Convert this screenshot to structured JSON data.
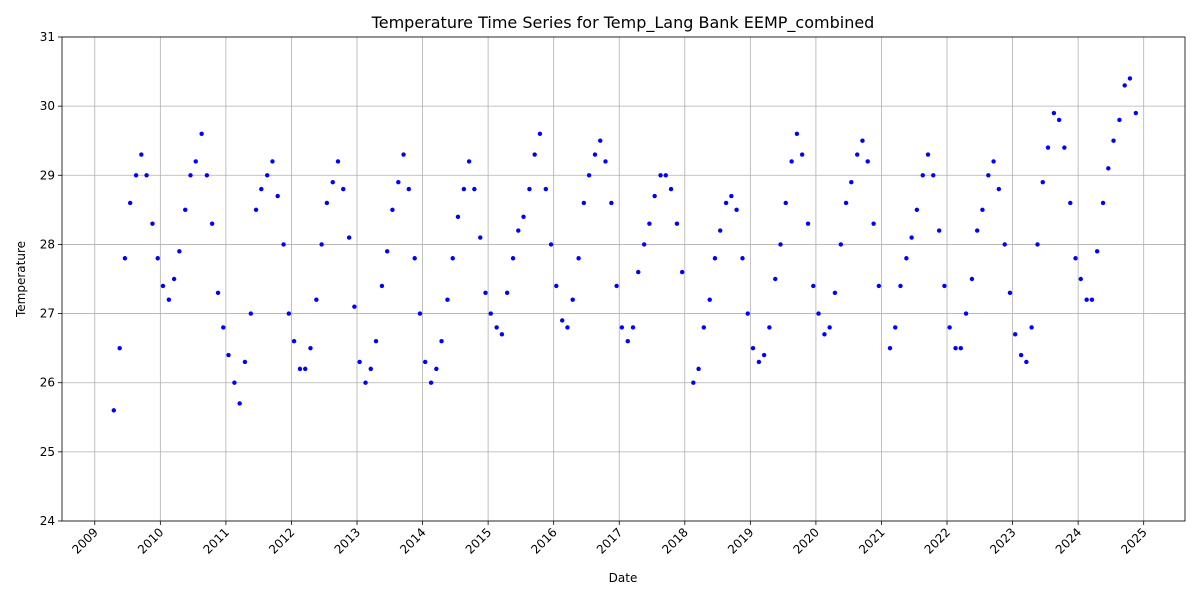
{
  "chart_data": {
    "type": "scatter",
    "title": "Temperature Time Series for Temp_Lang Bank EEMP_combined",
    "x_label": "Date",
    "y_label": "Temperature",
    "color": "#0000ff",
    "grid": true,
    "xlim": [
      2008.5,
      2025.63
    ],
    "ylim": [
      24,
      31
    ],
    "xticks": [
      2009,
      2010,
      2011,
      2012,
      2013,
      2014,
      2015,
      2016,
      2017,
      2018,
      2019,
      2020,
      2021,
      2022,
      2023,
      2024,
      2025
    ],
    "yticks": [
      24,
      25,
      26,
      27,
      28,
      29,
      30,
      31
    ],
    "x": [
      2009.29,
      2009.38,
      2009.46,
      2009.54,
      2009.63,
      2009.71,
      2009.79,
      2009.88,
      2009.96,
      2010.04,
      2010.13,
      2010.21,
      2010.29,
      2010.38,
      2010.46,
      2010.54,
      2010.63,
      2010.71,
      2010.79,
      2010.88,
      2010.96,
      2011.04,
      2011.13,
      2011.21,
      2011.29,
      2011.38,
      2011.46,
      2011.54,
      2011.63,
      2011.71,
      2011.79,
      2011.88,
      2011.96,
      2012.04,
      2012.13,
      2012.21,
      2012.29,
      2012.38,
      2012.46,
      2012.54,
      2012.63,
      2012.71,
      2012.79,
      2012.88,
      2012.96,
      2013.04,
      2013.13,
      2013.21,
      2013.29,
      2013.38,
      2013.46,
      2013.54,
      2013.63,
      2013.71,
      2013.79,
      2013.88,
      2013.96,
      2014.04,
      2014.13,
      2014.21,
      2014.29,
      2014.38,
      2014.46,
      2014.54,
      2014.63,
      2014.71,
      2014.79,
      2014.88,
      2014.96,
      2015.04,
      2015.13,
      2015.21,
      2015.29,
      2015.38,
      2015.46,
      2015.54,
      2015.63,
      2015.71,
      2015.79,
      2015.88,
      2015.96,
      2016.04,
      2016.13,
      2016.21,
      2016.29,
      2016.38,
      2016.46,
      2016.54,
      2016.63,
      2016.71,
      2016.79,
      2016.88,
      2016.96,
      2017.04,
      2017.13,
      2017.21,
      2017.29,
      2017.38,
      2017.46,
      2017.54,
      2017.63,
      2017.71,
      2017.79,
      2017.88,
      2017.96,
      2018.13,
      2018.21,
      2018.29,
      2018.38,
      2018.46,
      2018.54,
      2018.63,
      2018.71,
      2018.79,
      2018.88,
      2018.96,
      2019.04,
      2019.13,
      2019.21,
      2019.29,
      2019.38,
      2019.46,
      2019.54,
      2019.63,
      2019.71,
      2019.79,
      2019.88,
      2019.96,
      2020.04,
      2020.13,
      2020.21,
      2020.29,
      2020.38,
      2020.46,
      2020.54,
      2020.63,
      2020.71,
      2020.79,
      2020.88,
      2020.96,
      2021.13,
      2021.21,
      2021.29,
      2021.38,
      2021.46,
      2021.54,
      2021.63,
      2021.71,
      2021.79,
      2021.88,
      2021.96,
      2022.04,
      2022.13,
      2022.21,
      2022.29,
      2022.38,
      2022.46,
      2022.54,
      2022.63,
      2022.71,
      2022.79,
      2022.88,
      2022.96,
      2023.04,
      2023.13,
      2023.21,
      2023.29,
      2023.38,
      2023.46,
      2023.54,
      2023.63,
      2023.71,
      2023.79,
      2023.88,
      2023.96,
      2024.04,
      2024.13,
      2024.21,
      2024.29,
      2024.38,
      2024.46,
      2024.54,
      2024.63,
      2024.71,
      2024.79,
      2024.88
    ],
    "values": [
      25.6,
      26.5,
      27.8,
      28.6,
      29.0,
      29.3,
      29.0,
      28.3,
      27.8,
      27.4,
      27.2,
      27.5,
      27.9,
      28.5,
      29.0,
      29.2,
      29.6,
      29.0,
      28.3,
      27.3,
      26.8,
      26.4,
      26.0,
      25.7,
      26.3,
      27.0,
      28.5,
      28.8,
      29.0,
      29.2,
      28.7,
      28.0,
      27.0,
      26.6,
      26.2,
      26.2,
      26.5,
      27.2,
      28.0,
      28.6,
      28.9,
      29.2,
      28.8,
      28.1,
      27.1,
      26.3,
      26.0,
      26.2,
      26.6,
      27.4,
      27.9,
      28.5,
      28.9,
      29.3,
      28.8,
      27.8,
      27.0,
      26.3,
      26.0,
      26.2,
      26.6,
      27.2,
      27.8,
      28.4,
      28.8,
      29.2,
      28.8,
      28.1,
      27.3,
      27.0,
      26.8,
      26.7,
      27.3,
      27.8,
      28.2,
      28.4,
      28.8,
      29.3,
      29.6,
      28.8,
      28.0,
      27.4,
      26.9,
      26.8,
      27.2,
      27.8,
      28.6,
      29.0,
      29.3,
      29.5,
      29.2,
      28.6,
      27.4,
      26.8,
      26.6,
      26.8,
      27.6,
      28.0,
      28.3,
      28.7,
      29.0,
      29.0,
      28.8,
      28.3,
      27.6,
      26.0,
      26.2,
      26.8,
      27.2,
      27.8,
      28.2,
      28.6,
      28.7,
      28.5,
      27.8,
      27.0,
      26.5,
      26.3,
      26.4,
      26.8,
      27.5,
      28.0,
      28.6,
      29.2,
      29.6,
      29.3,
      28.3,
      27.4,
      27.0,
      26.7,
      26.8,
      27.3,
      28.0,
      28.6,
      28.9,
      29.3,
      29.5,
      29.2,
      28.3,
      27.4,
      26.5,
      26.8,
      27.4,
      27.8,
      28.1,
      28.5,
      29.0,
      29.3,
      29.0,
      28.2,
      27.4,
      26.8,
      26.5,
      26.5,
      27.0,
      27.5,
      28.2,
      28.5,
      29.0,
      29.2,
      28.8,
      28.0,
      27.3,
      26.7,
      26.4,
      26.3,
      26.8,
      28.0,
      28.9,
      29.4,
      29.9,
      29.8,
      29.4,
      28.6,
      27.8,
      27.5,
      27.2,
      27.2,
      27.9,
      28.6,
      29.1,
      29.5,
      29.8,
      30.3,
      30.4,
      29.9
    ]
  }
}
